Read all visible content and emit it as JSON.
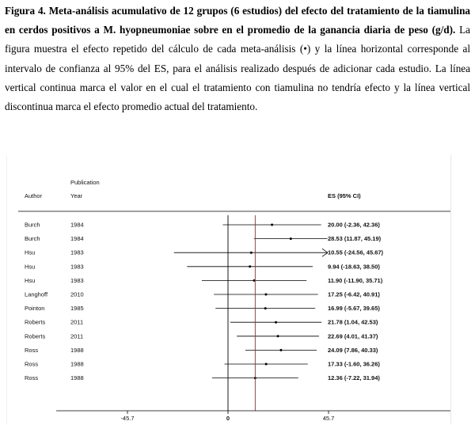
{
  "caption": {
    "bold": "Figura 4. Meta-análisis acumulativo de 12 grupos (6 estudios) del efecto del tratamiento de la tiamulina en cerdos positivos a M. hyopneumoniae sobre en el promedio de la ganancia diaria de peso (g/d).",
    "normal": " La figura muestra el efecto repetido del cálculo de cada meta-análisis (•) y la línea horizontal corresponde al intervalo de confianza al 95% del ES, para el análisis realizado después de adicionar cada estudio. La línea vertical continua marca el valor en el cual el tratamiento con tiamulina no tendría efecto y la línea vertical discontinua marca el efecto promedio actual del tratamiento."
  },
  "chart_data": {
    "type": "forest",
    "headers": {
      "publication": "Publication",
      "author": "Author",
      "year": "Year",
      "es": "ES (95% CI)"
    },
    "rows": [
      {
        "author": "Burch",
        "year": "1984",
        "es": 20.0,
        "lo": -2.36,
        "hi": 42.36,
        "label": "20.00 (-2.36, 42.36)"
      },
      {
        "author": "Burch",
        "year": "1984",
        "es": 28.53,
        "lo": 11.87,
        "hi": 45.19,
        "label": "28.53 (11.87, 45.19)"
      },
      {
        "author": "Hsu",
        "year": "1983",
        "es": 10.55,
        "lo": -24.56,
        "hi": 45.67,
        "label": "10.55 (-24.56, 45.67)"
      },
      {
        "author": "Hsu",
        "year": "1983",
        "es": 9.94,
        "lo": -18.63,
        "hi": 38.5,
        "label": "9.94 (-18.63, 38.50)"
      },
      {
        "author": "Hsu",
        "year": "1983",
        "es": 11.9,
        "lo": -11.9,
        "hi": 35.71,
        "label": "11.90 (-11.90, 35.71)"
      },
      {
        "author": "Langhoff",
        "year": "2010",
        "es": 17.25,
        "lo": -6.42,
        "hi": 40.91,
        "label": "17.25 (-6.42, 40.91)"
      },
      {
        "author": "Pointon",
        "year": "1985",
        "es": 16.99,
        "lo": -5.67,
        "hi": 39.65,
        "label": "16.99 (-5.67, 39.65)"
      },
      {
        "author": "Roberts",
        "year": "2011",
        "es": 21.78,
        "lo": 1.04,
        "hi": 42.53,
        "label": "21.78 (1.04, 42.53)"
      },
      {
        "author": "Roberts",
        "year": "2011",
        "es": 22.69,
        "lo": 4.01,
        "hi": 41.37,
        "label": "22.69 (4.01, 41.37)"
      },
      {
        "author": "Ross",
        "year": "1988",
        "es": 24.09,
        "lo": 7.86,
        "hi": 40.33,
        "label": "24.09 (7.86, 40.33)"
      },
      {
        "author": "Ross",
        "year": "1988",
        "es": 17.33,
        "lo": -1.6,
        "hi": 36.26,
        "label": "17.33 (-1.60, 36.26)"
      },
      {
        "author": "Ross",
        "year": "1988",
        "es": 12.36,
        "lo": -7.22,
        "hi": 31.94,
        "label": "12.36 (-7.22, 31.94)"
      }
    ],
    "xticks": [
      -45.7,
      0,
      45.7
    ],
    "xtick_labels": [
      "-45.7",
      "0",
      "45.7"
    ],
    "xlim": [
      -45.7,
      45.7
    ],
    "null_line": 0,
    "pooled_effect": 12.36,
    "colors": {
      "pooled_line": "#b22222",
      "marks": "#000000"
    }
  }
}
